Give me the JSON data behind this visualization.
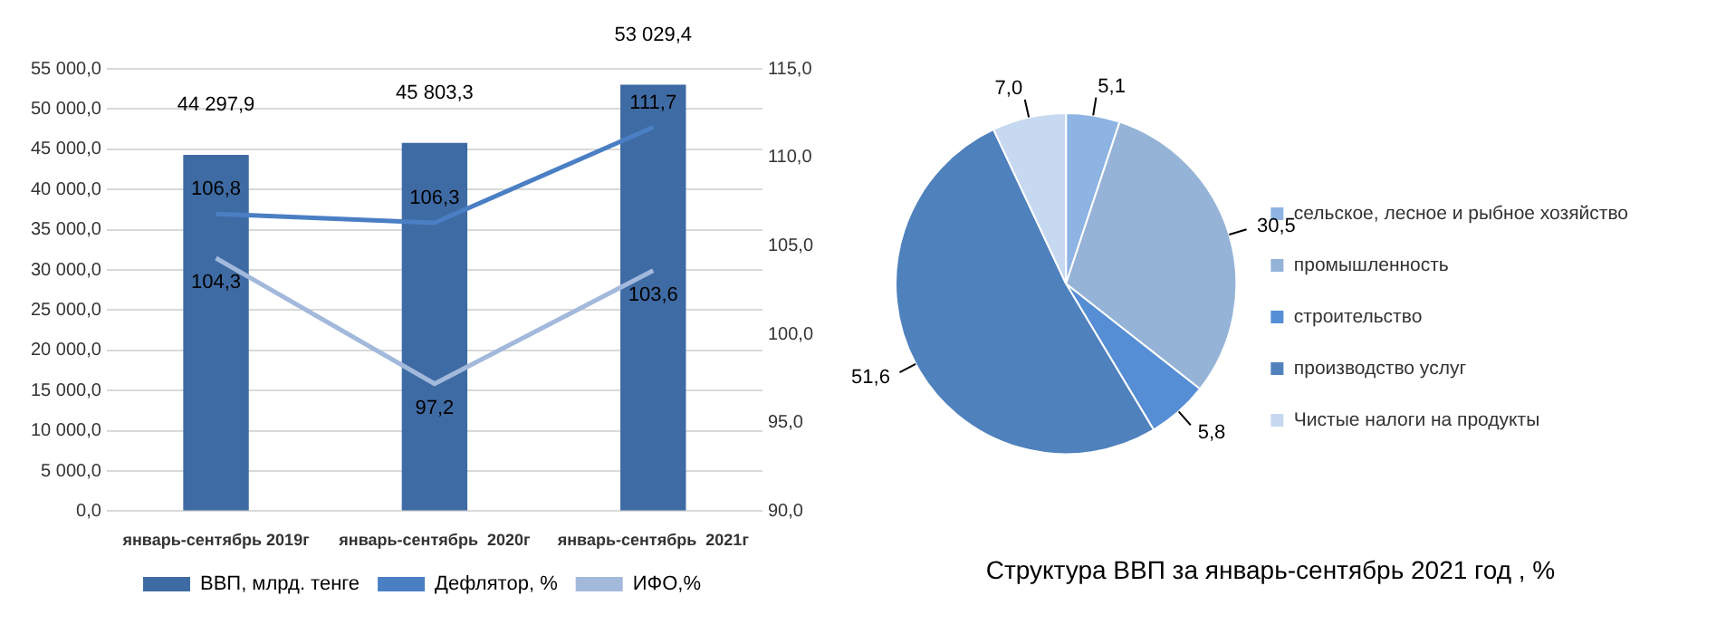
{
  "chart_data": [
    {
      "type": "bar",
      "categories": [
        "январь-сентябрь 2019г",
        "январь-сентябрь  2020г",
        "январь-сентябрь  2021г"
      ],
      "series": [
        {
          "name": "ВВП, млрд. тенге",
          "type": "bar",
          "color": "#3f6ba4",
          "values": [
            44297.9,
            45803.3,
            53029.4
          ],
          "value_labels": [
            "44 297,9",
            "45 803,3",
            "53 029,4"
          ]
        },
        {
          "name": "Дефлятор, %",
          "type": "line",
          "axis": "y2",
          "color": "#4a7fc4",
          "values": [
            106.8,
            106.3,
            111.7
          ],
          "value_labels": [
            "106,8",
            "106,3",
            "111,7"
          ]
        },
        {
          "name": "ИФО,%",
          "type": "line",
          "axis": "y2",
          "color": "#a3b9dc",
          "values": [
            104.3,
            97.2,
            103.6
          ],
          "value_labels": [
            "104,3",
            "97,2",
            "103,6"
          ]
        }
      ],
      "ylim": [
        0,
        55000
      ],
      "yticks": [
        {
          "value": 0,
          "label": "0,0"
        },
        {
          "value": 5000,
          "label": "5 000,0"
        },
        {
          "value": 10000,
          "label": "10 000,0"
        },
        {
          "value": 15000,
          "label": "15 000,0"
        },
        {
          "value": 20000,
          "label": "20 000,0"
        },
        {
          "value": 25000,
          "label": "25 000,0"
        },
        {
          "value": 30000,
          "label": "30 000,0"
        },
        {
          "value": 35000,
          "label": "35 000,0"
        },
        {
          "value": 40000,
          "label": "40 000,0"
        },
        {
          "value": 45000,
          "label": "45 000,0"
        },
        {
          "value": 50000,
          "label": "50 000,0"
        },
        {
          "value": 55000,
          "label": "55 000,0"
        }
      ],
      "y2lim": [
        90,
        115
      ],
      "y2ticks": [
        {
          "value": 90,
          "label": "90,0"
        },
        {
          "value": 95,
          "label": "95,0"
        },
        {
          "value": 100,
          "label": "100,0"
        },
        {
          "value": 105,
          "label": "105,0"
        },
        {
          "value": 110,
          "label": "110,0"
        },
        {
          "value": 115,
          "label": "115,0"
        }
      ],
      "grid": "y",
      "legend": "bottom",
      "marker": "none"
    },
    {
      "type": "pie",
      "title": "Структура ВВП за январь-сентябрь 2021 год , %",
      "categories": [
        "сельское, лесное и рыбное хозяйство",
        "промышленность",
        "строительство",
        "производство услуг",
        "Чистые налоги на продукты"
      ],
      "values": [
        5.1,
        30.5,
        5.8,
        51.6,
        7.0
      ],
      "colors": [
        "#8db4e2",
        "#95b3d7",
        "#558ed5",
        "#4f81bd",
        "#c6d9f1"
      ],
      "value_labels": [
        "5,1",
        "30,5",
        "5,8",
        "51,6",
        "7,0"
      ],
      "legend": "right"
    }
  ]
}
